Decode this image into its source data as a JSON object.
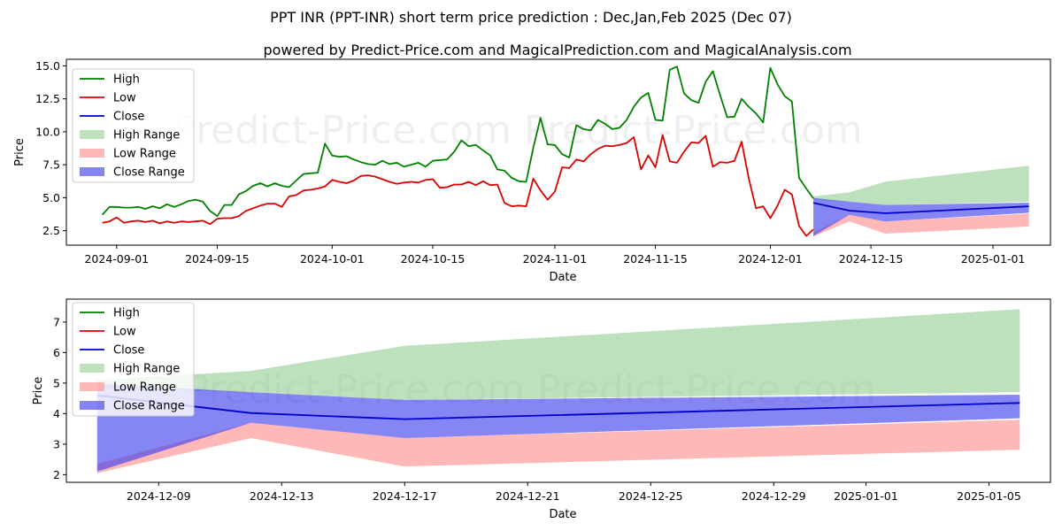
{
  "titles": {
    "line1": "PPT INR (PPT-INR) short term price prediction : Dec,Jan,Feb 2025 (Dec 07)",
    "line2": "powered by Predict-Price.com and MagicalPrediction.com and MagicalAnalysis.com"
  },
  "watermark": "Predict-Price.com   Predict-Price.com",
  "colors": {
    "high": "#008000",
    "low": "#dd0000",
    "close": "#0000cc",
    "high_range": "#86c786",
    "low_range": "#ff9a9a",
    "close_range": "#3a3aee"
  },
  "chart_data": [
    {
      "type": "line",
      "title": "",
      "xlabel": "Date",
      "ylabel": "Price",
      "x_domain": [
        "2024-08-25",
        "2025-01-09"
      ],
      "ylim": [
        1.4,
        15.5
      ],
      "x_ticks": [
        "2024-09-01",
        "2024-09-15",
        "2024-10-01",
        "2024-10-15",
        "2024-11-01",
        "2024-11-15",
        "2024-12-01",
        "2024-12-15",
        "2025-01-01"
      ],
      "y_ticks": [
        "2.5",
        "5.0",
        "7.5",
        "10.0",
        "12.5",
        "15.0"
      ],
      "legend": [
        "High",
        "Low",
        "Close",
        "High Range",
        "Low Range",
        "Close Range"
      ],
      "legend_position": "top-left",
      "series": [
        {
          "name": "High",
          "x": [
            "2024-08-30",
            "2024-08-31",
            "2024-09-01",
            "2024-09-02",
            "2024-09-03",
            "2024-09-04",
            "2024-09-05",
            "2024-09-06",
            "2024-09-07",
            "2024-09-08",
            "2024-09-09",
            "2024-09-10",
            "2024-09-11",
            "2024-09-12",
            "2024-09-13",
            "2024-09-14",
            "2024-09-15",
            "2024-09-16",
            "2024-09-17",
            "2024-09-18",
            "2024-09-19",
            "2024-09-20",
            "2024-09-21",
            "2024-09-22",
            "2024-09-23",
            "2024-09-24",
            "2024-09-25",
            "2024-09-26",
            "2024-09-27",
            "2024-09-28",
            "2024-09-29",
            "2024-09-30",
            "2024-10-01",
            "2024-10-02",
            "2024-10-03",
            "2024-10-04",
            "2024-10-05",
            "2024-10-06",
            "2024-10-07",
            "2024-10-08",
            "2024-10-09",
            "2024-10-10",
            "2024-10-11",
            "2024-10-12",
            "2024-10-13",
            "2024-10-14",
            "2024-10-15",
            "2024-10-16",
            "2024-10-17",
            "2024-10-18",
            "2024-10-19",
            "2024-10-20",
            "2024-10-21",
            "2024-10-22",
            "2024-10-23",
            "2024-10-24",
            "2024-10-25",
            "2024-10-26",
            "2024-10-27",
            "2024-10-28",
            "2024-10-29",
            "2024-10-30",
            "2024-10-31",
            "2024-11-01",
            "2024-11-02",
            "2024-11-03",
            "2024-11-04",
            "2024-11-05",
            "2024-11-06",
            "2024-11-07",
            "2024-11-08",
            "2024-11-09",
            "2024-11-10",
            "2024-11-11",
            "2024-11-12",
            "2024-11-13",
            "2024-11-14",
            "2024-11-15",
            "2024-11-16",
            "2024-11-17",
            "2024-11-18",
            "2024-11-19",
            "2024-11-20",
            "2024-11-21",
            "2024-11-22",
            "2024-11-23",
            "2024-11-24",
            "2024-11-25",
            "2024-11-26",
            "2024-11-27",
            "2024-11-28",
            "2024-11-29",
            "2024-11-30",
            "2024-12-01",
            "2024-12-02",
            "2024-12-03",
            "2024-12-04",
            "2024-12-05",
            "2024-12-06",
            "2024-12-07"
          ],
          "values": [
            3.7,
            4.3,
            4.3,
            4.25,
            4.25,
            4.3,
            4.15,
            4.35,
            4.2,
            4.5,
            4.3,
            4.5,
            4.75,
            4.85,
            4.7,
            4.0,
            3.6,
            4.45,
            4.45,
            5.25,
            5.5,
            5.9,
            6.1,
            5.85,
            6.1,
            5.9,
            5.8,
            6.3,
            6.8,
            6.85,
            6.9,
            9.1,
            8.2,
            8.1,
            8.15,
            7.9,
            7.7,
            7.55,
            7.5,
            7.8,
            7.55,
            7.65,
            7.35,
            7.5,
            7.65,
            7.35,
            7.8,
            7.85,
            7.9,
            8.5,
            9.35,
            8.9,
            9.0,
            8.6,
            8.2,
            7.15,
            7.05,
            6.5,
            6.25,
            6.2,
            8.8,
            11.05,
            9.05,
            9.0,
            8.3,
            8.05,
            10.5,
            10.2,
            10.1,
            10.9,
            10.6,
            10.2,
            10.3,
            10.9,
            11.9,
            12.6,
            12.95,
            10.9,
            10.85,
            14.7,
            14.95,
            12.9,
            12.4,
            12.2,
            13.8,
            14.6,
            12.8,
            11.1,
            11.15,
            12.5,
            11.9,
            11.4,
            10.7,
            14.85,
            13.6,
            12.7,
            12.3,
            6.5,
            5.7,
            4.95
          ]
        },
        {
          "name": "Low",
          "x": [
            "2024-08-30",
            "2024-08-31",
            "2024-09-01",
            "2024-09-02",
            "2024-09-03",
            "2024-09-04",
            "2024-09-05",
            "2024-09-06",
            "2024-09-07",
            "2024-09-08",
            "2024-09-09",
            "2024-09-10",
            "2024-09-11",
            "2024-09-12",
            "2024-09-13",
            "2024-09-14",
            "2024-09-15",
            "2024-09-16",
            "2024-09-17",
            "2024-09-18",
            "2024-09-19",
            "2024-09-20",
            "2024-09-21",
            "2024-09-22",
            "2024-09-23",
            "2024-09-24",
            "2024-09-25",
            "2024-09-26",
            "2024-09-27",
            "2024-09-28",
            "2024-09-29",
            "2024-09-30",
            "2024-10-01",
            "2024-10-02",
            "2024-10-03",
            "2024-10-04",
            "2024-10-05",
            "2024-10-06",
            "2024-10-07",
            "2024-10-08",
            "2024-10-09",
            "2024-10-10",
            "2024-10-11",
            "2024-10-12",
            "2024-10-13",
            "2024-10-14",
            "2024-10-15",
            "2024-10-16",
            "2024-10-17",
            "2024-10-18",
            "2024-10-19",
            "2024-10-20",
            "2024-10-21",
            "2024-10-22",
            "2024-10-23",
            "2024-10-24",
            "2024-10-25",
            "2024-10-26",
            "2024-10-27",
            "2024-10-28",
            "2024-10-29",
            "2024-10-30",
            "2024-10-31",
            "2024-11-01",
            "2024-11-02",
            "2024-11-03",
            "2024-11-04",
            "2024-11-05",
            "2024-11-06",
            "2024-11-07",
            "2024-11-08",
            "2024-11-09",
            "2024-11-10",
            "2024-11-11",
            "2024-11-12",
            "2024-11-13",
            "2024-11-14",
            "2024-11-15",
            "2024-11-16",
            "2024-11-17",
            "2024-11-18",
            "2024-11-19",
            "2024-11-20",
            "2024-11-21",
            "2024-11-22",
            "2024-11-23",
            "2024-11-24",
            "2024-11-25",
            "2024-11-26",
            "2024-11-27",
            "2024-11-28",
            "2024-11-29",
            "2024-11-30",
            "2024-12-01",
            "2024-12-02",
            "2024-12-03",
            "2024-12-04",
            "2024-12-05",
            "2024-12-06",
            "2024-12-07"
          ],
          "values": [
            3.1,
            3.2,
            3.5,
            3.1,
            3.2,
            3.25,
            3.15,
            3.25,
            3.05,
            3.2,
            3.1,
            3.2,
            3.15,
            3.2,
            3.25,
            3.0,
            3.4,
            3.45,
            3.45,
            3.6,
            4.0,
            4.2,
            4.4,
            4.55,
            4.55,
            4.3,
            5.1,
            5.2,
            5.55,
            5.6,
            5.7,
            5.85,
            6.35,
            6.2,
            6.1,
            6.3,
            6.65,
            6.7,
            6.6,
            6.4,
            6.2,
            6.05,
            6.15,
            6.2,
            6.15,
            6.35,
            6.4,
            5.75,
            5.8,
            6.0,
            6.0,
            6.2,
            5.95,
            6.25,
            5.95,
            6.0,
            4.6,
            4.35,
            4.4,
            4.35,
            6.45,
            5.55,
            4.85,
            5.45,
            7.3,
            7.25,
            7.9,
            7.75,
            8.3,
            8.7,
            8.95,
            8.9,
            9.0,
            9.15,
            9.6,
            7.15,
            8.2,
            7.3,
            9.75,
            7.75,
            7.65,
            8.5,
            9.2,
            9.15,
            9.7,
            7.35,
            7.7,
            7.65,
            7.8,
            9.25,
            6.45,
            4.2,
            4.35,
            3.45,
            4.4,
            5.6,
            5.25,
            2.85,
            2.1,
            2.6
          ]
        },
        {
          "name": "Close",
          "x": [
            "2024-12-07",
            "2024-12-12",
            "2024-12-17",
            "2025-01-06"
          ],
          "values": [
            4.6,
            4.02,
            3.82,
            4.35
          ]
        }
      ],
      "ranges": [
        {
          "name": "High Range",
          "x": [
            "2024-12-07",
            "2024-12-12",
            "2024-12-17",
            "2025-01-06"
          ],
          "lower": [
            4.85,
            4.7,
            4.45,
            4.7
          ],
          "upper": [
            5.1,
            5.4,
            6.22,
            7.42
          ]
        },
        {
          "name": "Low Range",
          "x": [
            "2024-12-07",
            "2024-12-12",
            "2024-12-17",
            "2025-01-06"
          ],
          "lower": [
            2.05,
            3.2,
            2.27,
            2.82
          ],
          "upper": [
            2.35,
            3.7,
            3.2,
            3.8
          ]
        },
        {
          "name": "Close Range",
          "x": [
            "2024-12-07",
            "2024-12-12",
            "2024-12-17",
            "2025-01-06"
          ],
          "lower": [
            2.1,
            3.7,
            3.2,
            3.85
          ],
          "upper": [
            4.98,
            4.7,
            4.45,
            4.62
          ]
        }
      ]
    },
    {
      "type": "line",
      "title": "",
      "xlabel": "Date",
      "ylabel": "Price",
      "x_domain": [
        "2024-12-06",
        "2025-01-07"
      ],
      "ylim": [
        1.75,
        7.75
      ],
      "x_ticks": [
        "2024-12-09",
        "2024-12-13",
        "2024-12-17",
        "2024-12-21",
        "2024-12-25",
        "2024-12-29",
        "2025-01-01",
        "2025-01-05"
      ],
      "y_ticks": [
        "2",
        "3",
        "4",
        "5",
        "6",
        "7"
      ],
      "legend": [
        "High",
        "Low",
        "Close",
        "High Range",
        "Low Range",
        "Close Range"
      ],
      "legend_position": "top-left",
      "series": [
        {
          "name": "Close",
          "x": [
            "2024-12-07",
            "2024-12-12",
            "2024-12-17",
            "2025-01-06"
          ],
          "values": [
            4.6,
            4.02,
            3.82,
            4.35
          ]
        }
      ],
      "ranges": [
        {
          "name": "High Range",
          "x": [
            "2024-12-07",
            "2024-12-12",
            "2024-12-17",
            "2025-01-06"
          ],
          "lower": [
            4.85,
            4.7,
            4.45,
            4.7
          ],
          "upper": [
            5.1,
            5.4,
            6.22,
            7.42
          ]
        },
        {
          "name": "Low Range",
          "x": [
            "2024-12-07",
            "2024-12-12",
            "2024-12-17",
            "2025-01-06"
          ],
          "lower": [
            2.05,
            3.2,
            2.27,
            2.82
          ],
          "upper": [
            2.35,
            3.7,
            3.2,
            3.8
          ]
        },
        {
          "name": "Close Range",
          "x": [
            "2024-12-07",
            "2024-12-12",
            "2024-12-17",
            "2025-01-06"
          ],
          "lower": [
            2.1,
            3.7,
            3.2,
            3.85
          ],
          "upper": [
            4.98,
            4.7,
            4.45,
            4.62
          ]
        }
      ]
    }
  ]
}
